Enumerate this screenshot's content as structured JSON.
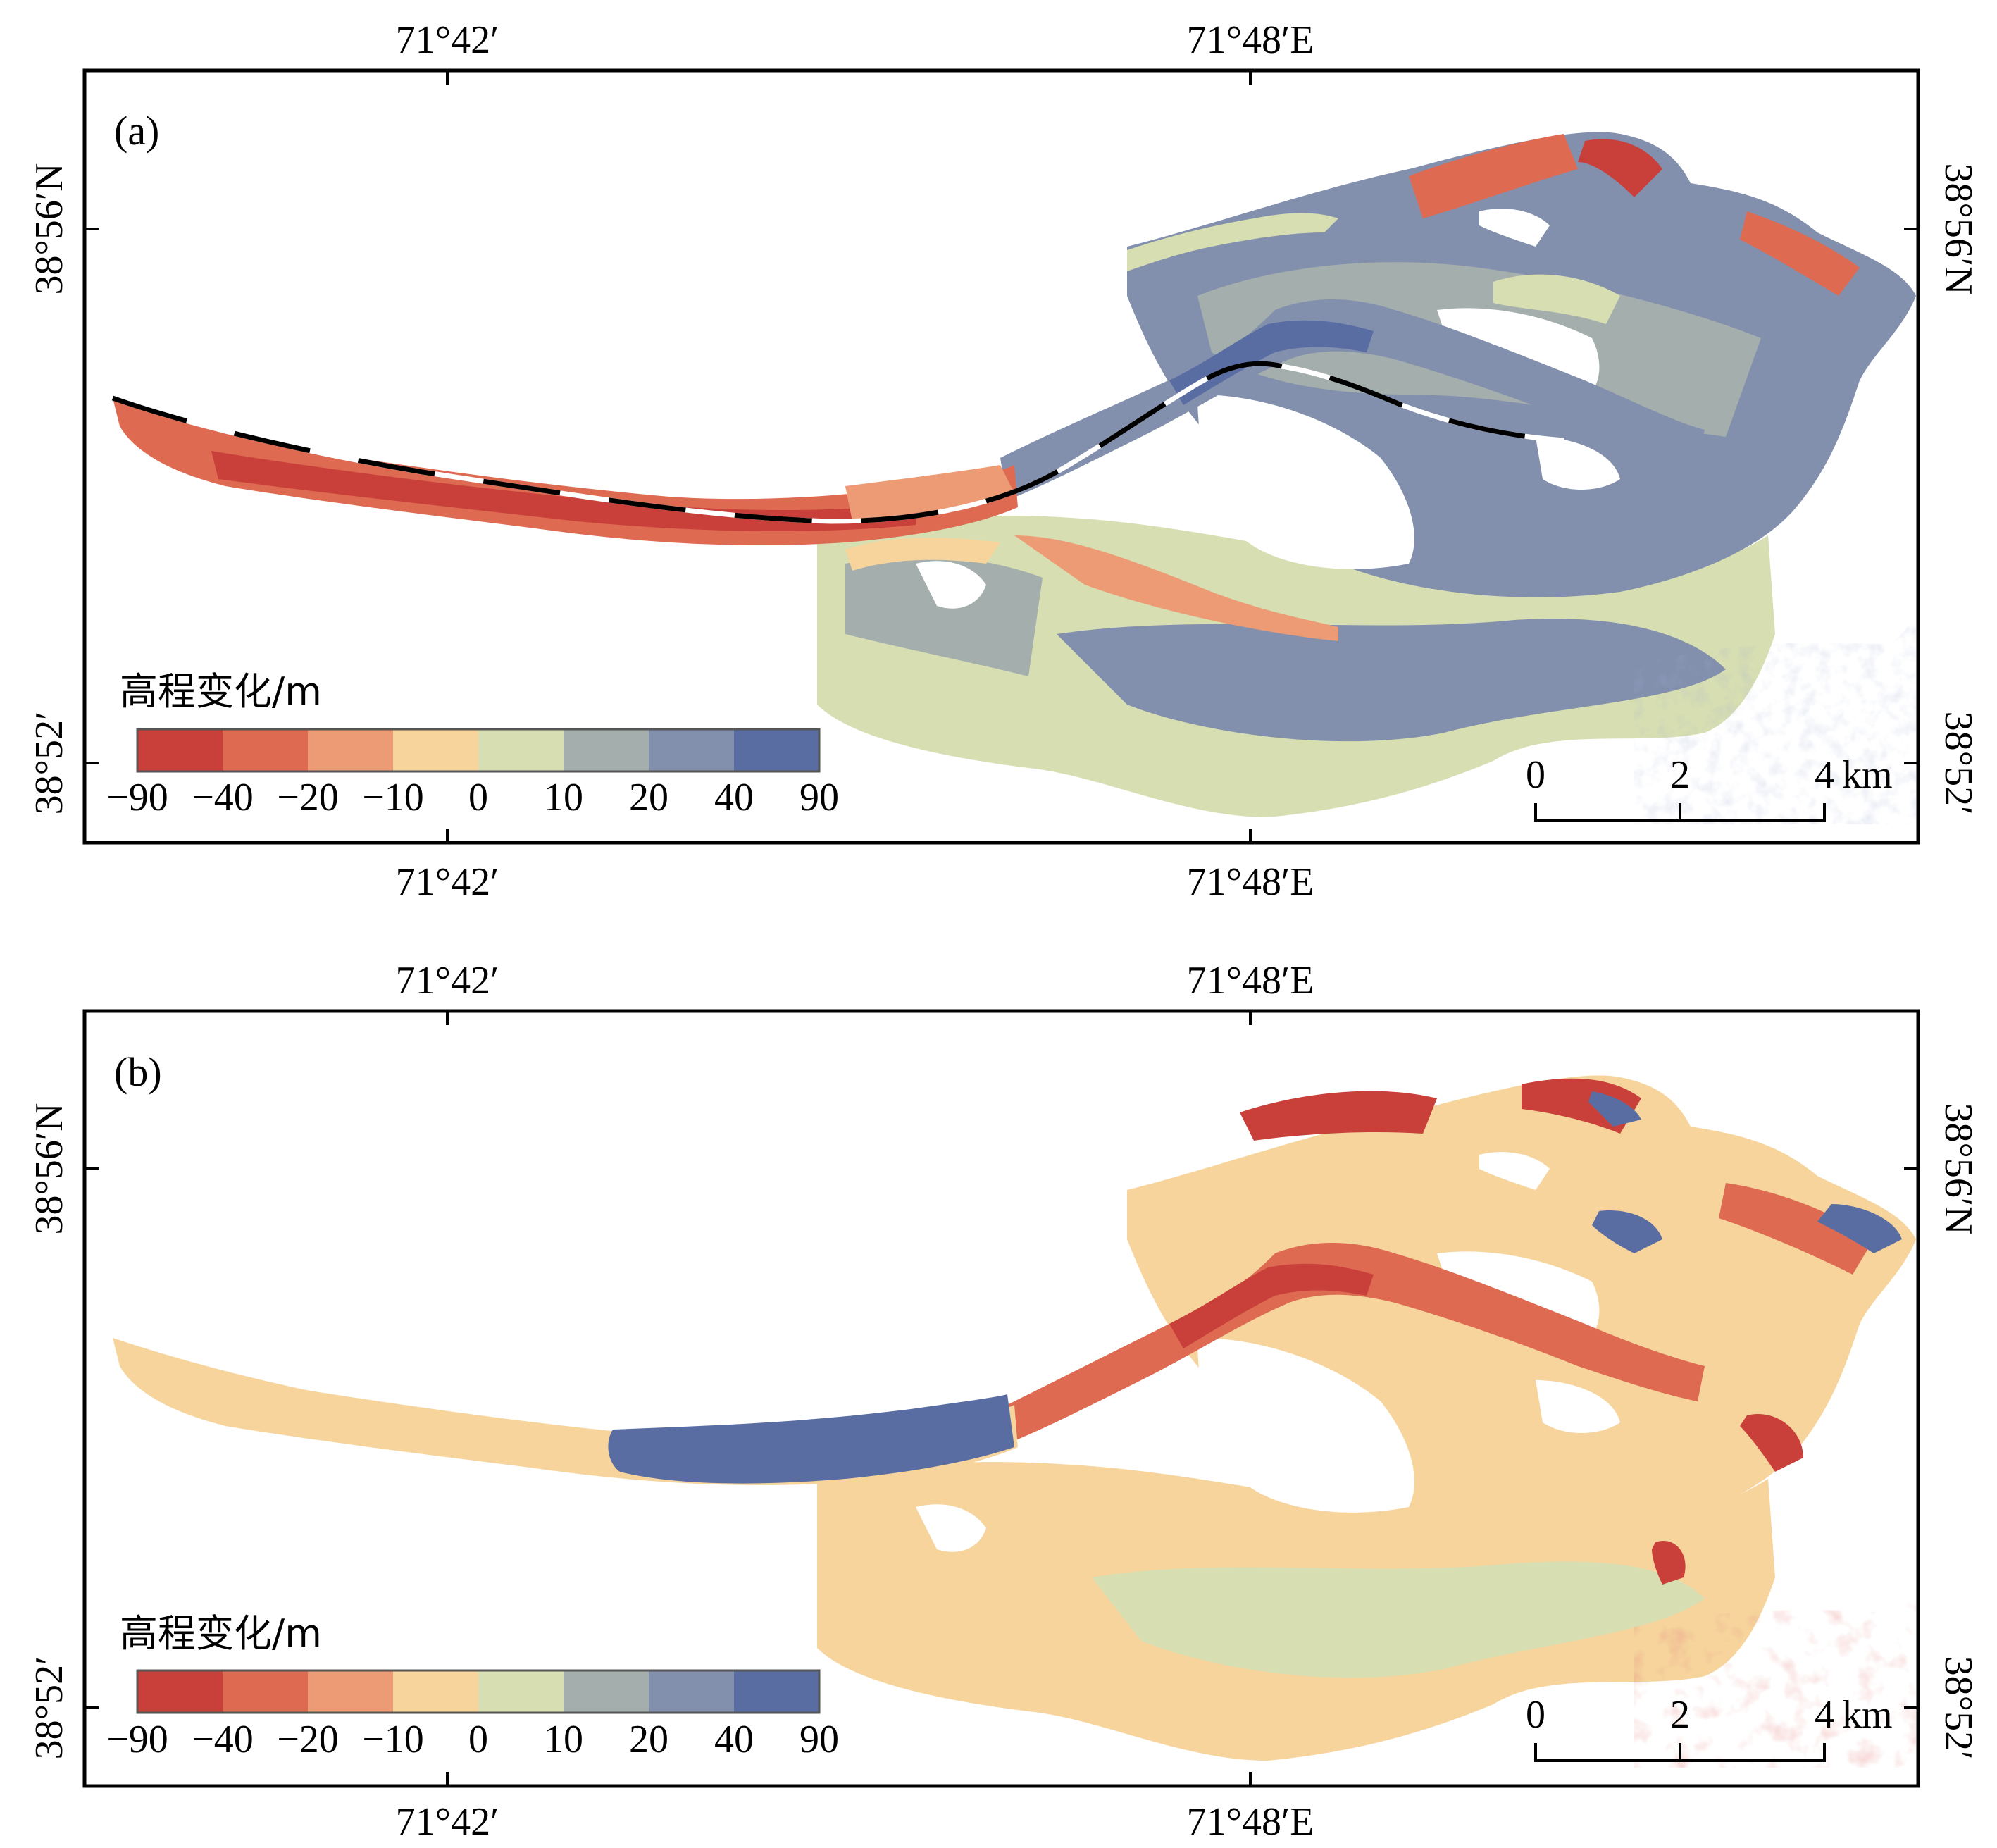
{
  "colors": {
    "frame": "#000000",
    "background": "#ffffff",
    "ramp": [
      "#c9403a",
      "#de6a52",
      "#ec9b74",
      "#f6d49c",
      "#d7deb2",
      "#a4aeac",
      "#8390ad",
      "#5a6da3"
    ]
  },
  "panels": [
    {
      "label": "(a)",
      "top_lon": [
        "71°42′",
        "71°48′E"
      ],
      "bottom_lon": [
        "71°42′",
        "71°48′E"
      ],
      "left_lat": [
        "38°56′N",
        "38°52′"
      ],
      "right_lat": [
        "38°56′N",
        "38°52′"
      ],
      "legend": {
        "title": "高程变化/m",
        "ticks": [
          "−90",
          "−40",
          "−20",
          "−10",
          "0",
          "10",
          "20",
          "40",
          "90"
        ]
      },
      "scalebar": {
        "ticks": [
          "0",
          "2",
          "4"
        ],
        "unit": "km"
      },
      "profile_line": "dashed black-and-white profile line along the glacier centreline",
      "glacier_tongue_dominant": "red",
      "upper_basin_dominant": "blue"
    },
    {
      "label": "(b)",
      "top_lon": [
        "71°42′",
        "71°48′E"
      ],
      "bottom_lon": [
        "71°42′",
        "71°48′E"
      ],
      "left_lat": [
        "38°56′N",
        "38°52′"
      ],
      "right_lat": [
        "38°56′N",
        "38°52′"
      ],
      "legend": {
        "title": "高程变化/m",
        "ticks": [
          "−90",
          "−40",
          "−20",
          "−10",
          "0",
          "10",
          "20",
          "40",
          "90"
        ]
      },
      "scalebar": {
        "ticks": [
          "0",
          "2",
          "4"
        ],
        "unit": "km"
      },
      "glacier_tongue_dominant": "blue",
      "upper_basin_dominant": "red"
    }
  ]
}
